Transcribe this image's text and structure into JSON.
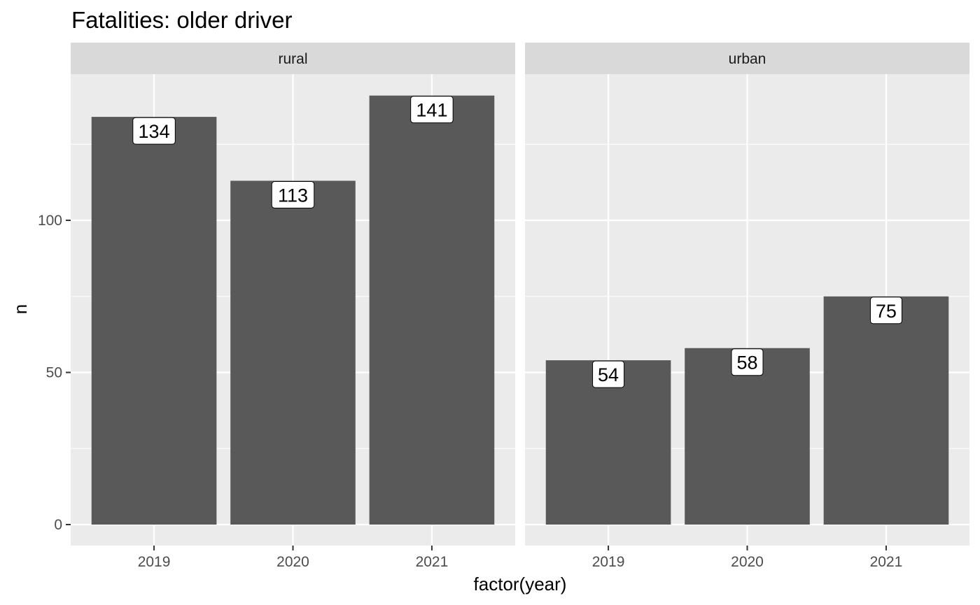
{
  "chart_data": {
    "type": "bar",
    "title": "Fatalities: older driver",
    "xlabel": "factor(year)",
    "ylabel": "n",
    "categories": [
      "2019",
      "2020",
      "2021"
    ],
    "y_ticks": [
      "0",
      "50",
      "100"
    ],
    "ylim": [
      0,
      148
    ],
    "grid": true,
    "facets": [
      {
        "name": "rural",
        "values": [
          134,
          113,
          141
        ],
        "labels": [
          "134",
          "113",
          "141"
        ]
      },
      {
        "name": "urban",
        "values": [
          54,
          58,
          75
        ],
        "labels": [
          "54",
          "58",
          "75"
        ]
      }
    ],
    "colors": {
      "bar": "#595959",
      "panel": "#ebebeb",
      "strip": "#d9d9d9",
      "grid": "#ffffff",
      "label_fill": "#ffffff"
    }
  }
}
